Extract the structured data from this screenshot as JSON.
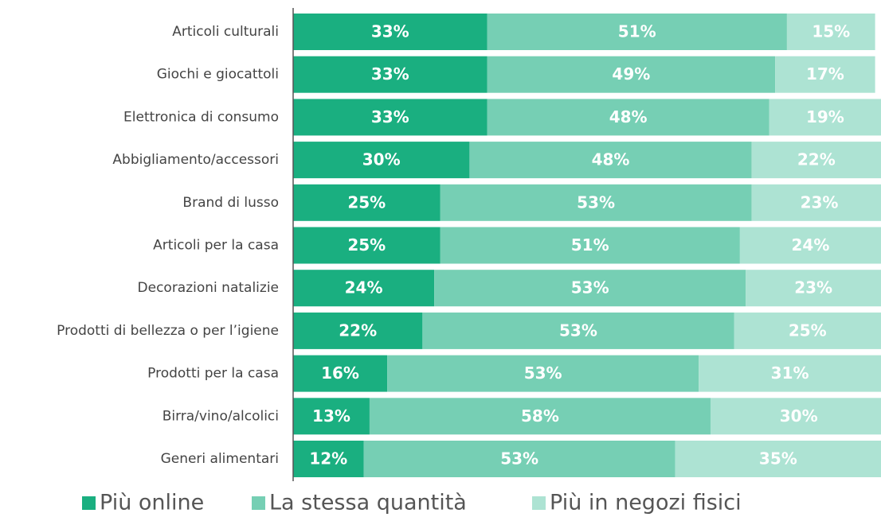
{
  "chart_data": {
    "type": "stacked-bar-horizontal",
    "categories": [
      "Articoli culturali",
      "Giochi e giocattoli",
      "Elettronica di consumo",
      "Abbigliamento/accessori",
      "Brand di lusso",
      "Articoli per la casa",
      "Decorazioni natalizie",
      "Prodotti di bellezza o per l’igiene",
      "Prodotti per la casa",
      "Birra/vino/alcolici",
      "Generi alimentari"
    ],
    "series": [
      {
        "name": "Più online",
        "color": "#1aaf80",
        "values": [
          33,
          33,
          33,
          30,
          25,
          25,
          24,
          22,
          16,
          13,
          12
        ],
        "value_labels": [
          "33%",
          "33%",
          "33%",
          "30%",
          "25%",
          "25%",
          "24%",
          "22%",
          "16%",
          "13%",
          "12%"
        ]
      },
      {
        "name": "La stessa quantità",
        "color": "#76cfb4",
        "values": [
          51,
          49,
          48,
          48,
          53,
          51,
          53,
          53,
          53,
          58,
          53
        ],
        "value_labels": [
          "51%",
          "49%",
          "48%",
          "48%",
          "53%",
          "51%",
          "53%",
          "53%",
          "53%",
          "58%",
          "53%"
        ]
      },
      {
        "name": "Più in negozi fisici",
        "color": "#ade3d3",
        "values": [
          15,
          17,
          19,
          22,
          23,
          24,
          23,
          25,
          31,
          30,
          35
        ],
        "value_labels": [
          "15%",
          "17%",
          "19%",
          "22%",
          "23%",
          "24%",
          "23%",
          "25%",
          "31%",
          "30%",
          "35%"
        ]
      }
    ],
    "xlim": [
      0,
      100
    ]
  }
}
